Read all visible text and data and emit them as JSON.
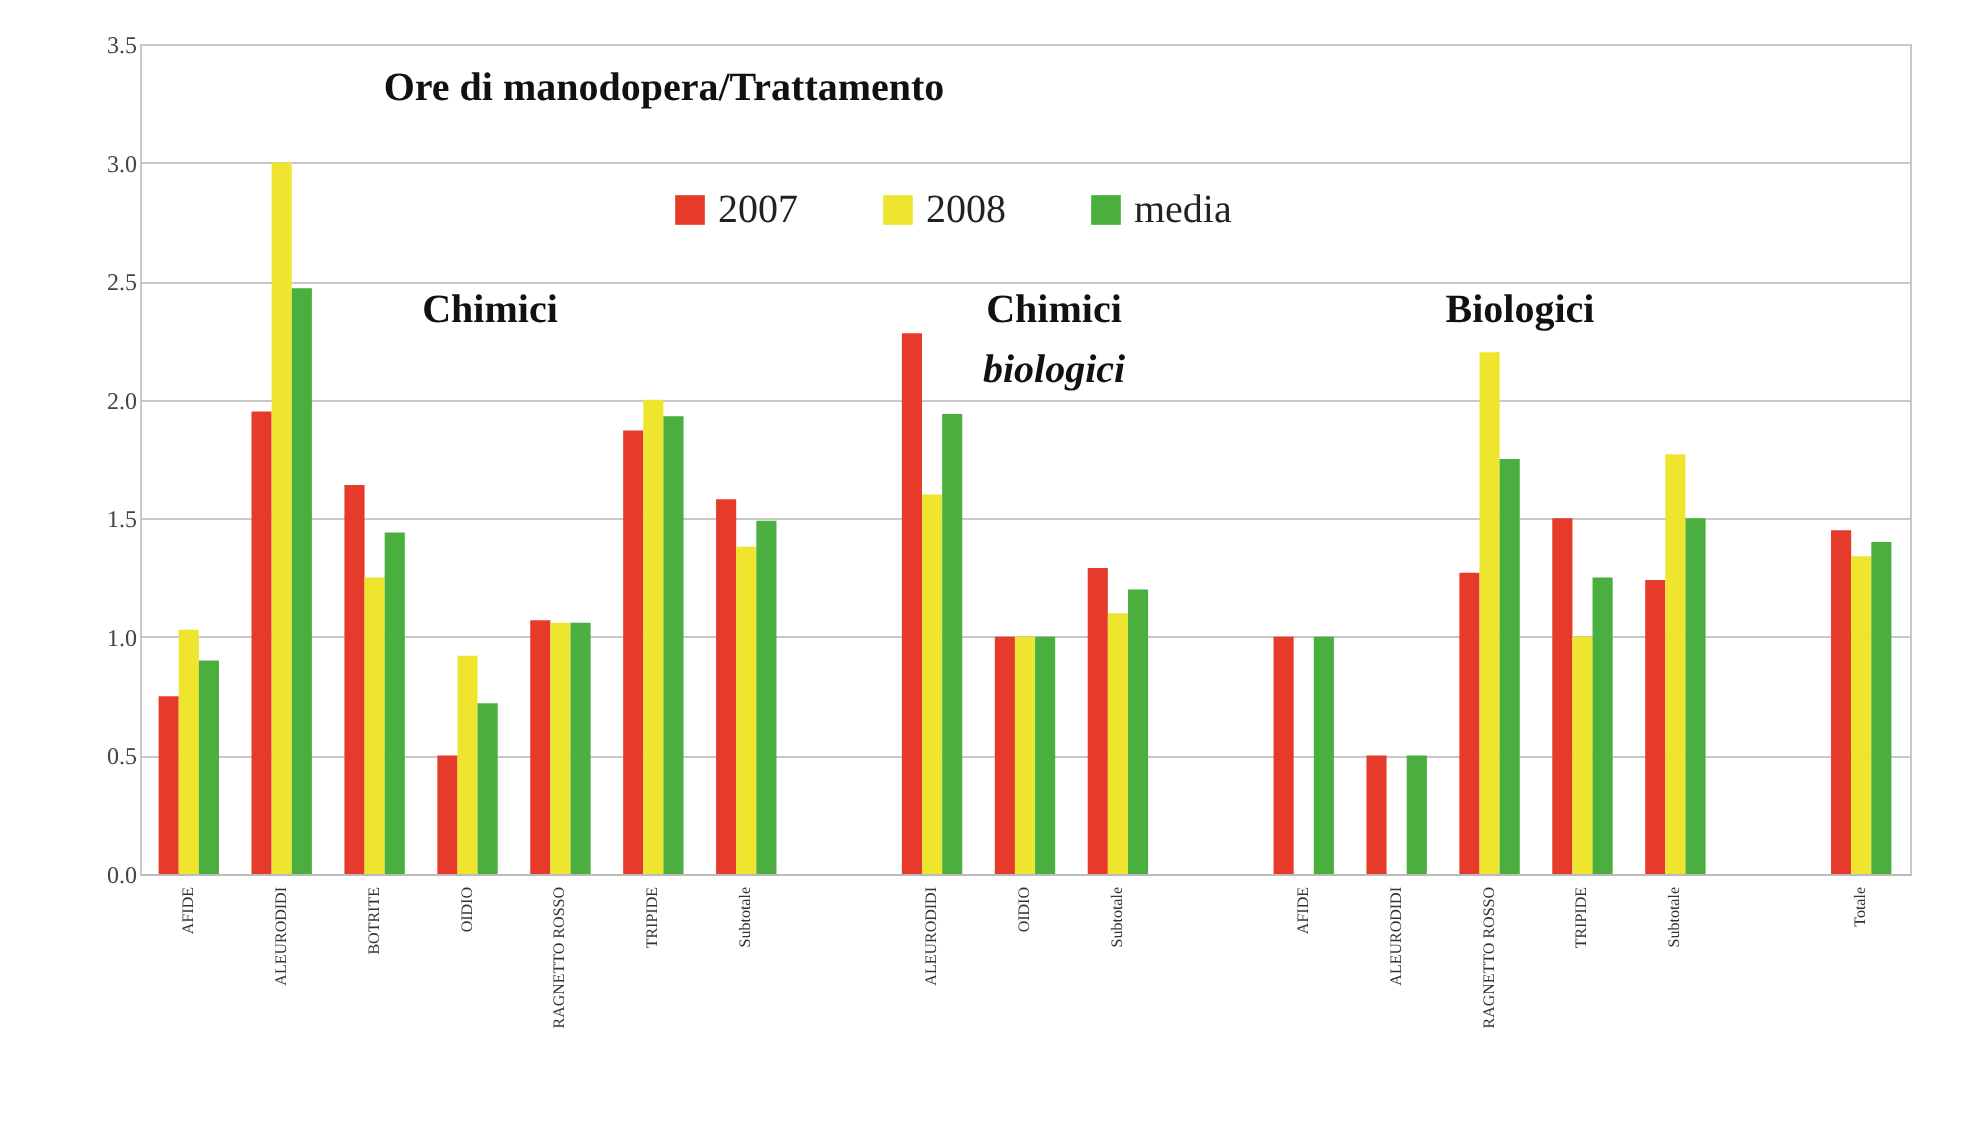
{
  "chart_data": {
    "type": "bar",
    "title": "Ore di manodopera/Trattamento",
    "categories": [
      "AFIDE",
      "ALEURODIDI",
      "BOTRITE",
      "OIDIO",
      "RAGNETTO ROSSO",
      "TRIPIDE",
      "Subtotale",
      null,
      "ALEURODIDI",
      "OIDIO",
      "Subtotale",
      null,
      "AFIDE",
      "ALEURODIDI",
      "RAGNETTO ROSSO",
      "TRIPIDE",
      "Subtotale",
      null,
      "Totale"
    ],
    "series": [
      {
        "name": "2007",
        "color": "#e63b2a",
        "values": [
          0.75,
          1.95,
          1.64,
          0.5,
          1.07,
          1.87,
          1.58,
          null,
          2.28,
          1.0,
          1.29,
          null,
          1.0,
          0.5,
          1.27,
          1.5,
          1.24,
          null,
          1.45
        ]
      },
      {
        "name": "2008",
        "color": "#f0e52e",
        "values": [
          1.03,
          3.0,
          1.25,
          0.92,
          1.06,
          2.0,
          1.38,
          null,
          1.6,
          1.0,
          1.1,
          null,
          null,
          null,
          2.2,
          1.0,
          1.77,
          null,
          1.34
        ]
      },
      {
        "name": "media",
        "color": "#4aaf3e",
        "values": [
          0.9,
          2.47,
          1.44,
          0.72,
          1.06,
          1.93,
          1.49,
          null,
          1.94,
          1.0,
          1.2,
          null,
          1.0,
          0.5,
          1.75,
          1.25,
          1.5,
          null,
          1.4
        ]
      }
    ],
    "ylim": [
      0,
      3.5
    ],
    "yticks": [
      {
        "value": 0,
        "label": "0.0"
      },
      0.5,
      {
        "value": 1,
        "label": "1.0"
      },
      1.5,
      {
        "value": 2,
        "label": "2.0"
      },
      2.5,
      {
        "value": 3,
        "label": "3.0"
      },
      3.5
    ],
    "grid": "y",
    "legend": "top",
    "annotations": [
      "Chimici",
      "Chimici",
      "biologici",
      "Biologici"
    ]
  }
}
